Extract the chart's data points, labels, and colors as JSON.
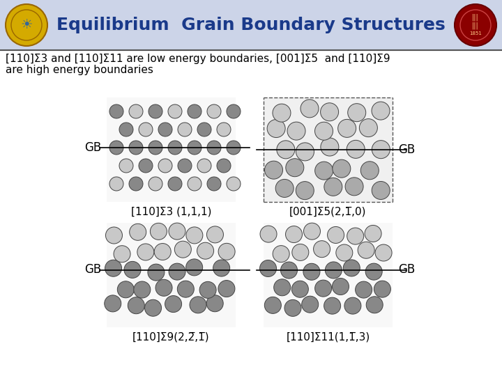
{
  "title": "Equilibrium  Grain Boundary Structures",
  "title_color": "#1a3a8a",
  "title_fontsize": 18,
  "subtitle_line1": "[110]Σ3 and [110]Σ11 are low energy boundaries, [001]Σ5  and [110]Σ9",
  "subtitle_line2": "are high energy boundaries",
  "subtitle_fontsize": 11,
  "bg_color": "#ffffff",
  "header_bg": "#ccd4e8",
  "panel_labels": [
    "[110]Σ3 (1,1,1)",
    "[001]Σ5(2,1̅,0)",
    "[110]Σ9(2,2̅,1̅)",
    "[110]Σ11(1,1̅,3)"
  ],
  "gb_label": "GB",
  "gb_fontsize": 12,
  "atom_light": "#c8c8c8",
  "atom_mid": "#aaaaaa",
  "atom_dark": "#888888",
  "atom_outline": "#444444",
  "line_color": "#000000",
  "header_line_color": "#555555"
}
